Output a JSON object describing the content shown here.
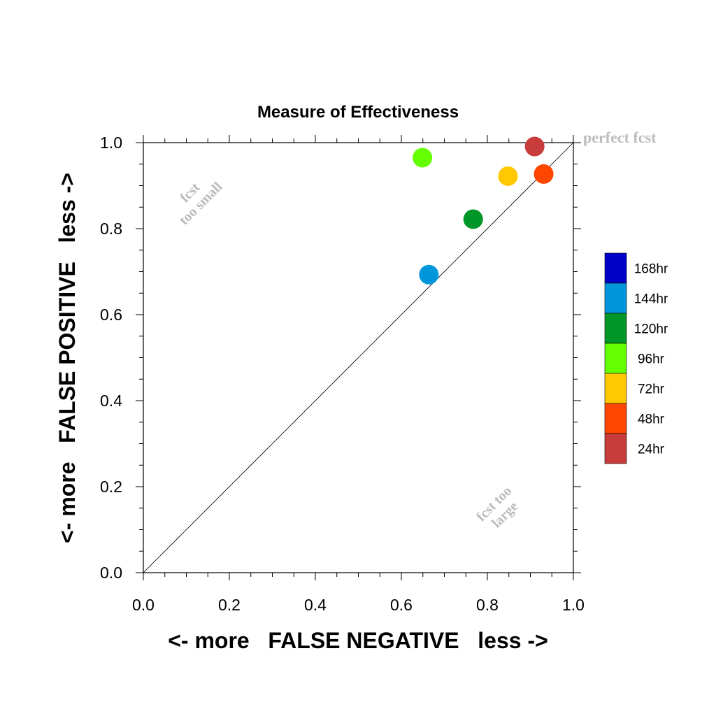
{
  "chart_data": {
    "type": "scatter",
    "title": "Measure of Effectiveness",
    "xlabel": "<- more   FALSE NEGATIVE   less ->",
    "ylabel": "<- more   FALSE POSITIVE   less ->",
    "xlim": [
      0,
      1
    ],
    "ylim": [
      0,
      1
    ],
    "x_ticks": [
      "0.0",
      "0.2",
      "0.4",
      "0.6",
      "0.8",
      "1.0"
    ],
    "y_ticks": [
      "0.0",
      "0.2",
      "0.4",
      "0.6",
      "0.8",
      "1.0"
    ],
    "grid": false,
    "diagonal_line": true,
    "legend_position": "right",
    "annotations": {
      "perfect": "perfect fcst",
      "too_small_line1": "fcst",
      "too_small_line2": "too small",
      "too_large_line1": "fcst too",
      "too_large_line2": "large"
    },
    "legend": [
      {
        "name": "168hr",
        "color": "#0000c8"
      },
      {
        "name": "144hr",
        "color": "#0096dc"
      },
      {
        "name": "120hr",
        "color": "#009628"
      },
      {
        "name": "96hr",
        "color": "#64ff00"
      },
      {
        "name": "72hr",
        "color": "#ffc800"
      },
      {
        "name": "48hr",
        "color": "#ff4600"
      },
      {
        "name": "24hr",
        "color": "#c83c3c"
      }
    ],
    "series": [
      {
        "name": "144hr",
        "x": 0.664,
        "y": 0.693,
        "color": "#0096dc"
      },
      {
        "name": "120hr",
        "x": 0.767,
        "y": 0.822,
        "color": "#009628"
      },
      {
        "name": "96hr",
        "x": 0.649,
        "y": 0.965,
        "color": "#64ff00"
      },
      {
        "name": "72hr",
        "x": 0.848,
        "y": 0.922,
        "color": "#ffc800"
      },
      {
        "name": "48hr",
        "x": 0.931,
        "y": 0.927,
        "color": "#ff4600"
      },
      {
        "name": "24hr",
        "x": 0.91,
        "y": 0.991,
        "color": "#c83c3c"
      }
    ]
  }
}
